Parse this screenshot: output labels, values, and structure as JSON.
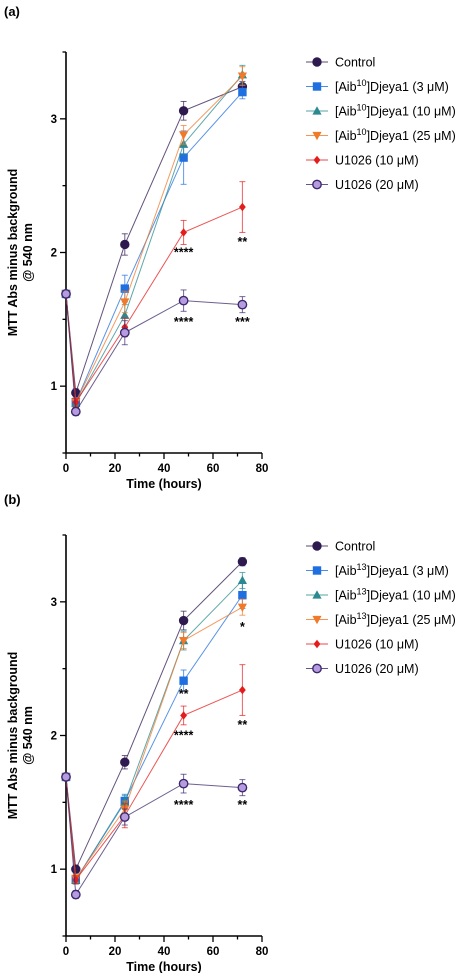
{
  "chart_data": [
    {
      "type": "line",
      "panel_label": "(a)",
      "xlabel": "Time (hours)",
      "ylabel_lines": [
        "MTT Abs minus background",
        "@ 540 nm"
      ],
      "xlim": [
        0,
        80
      ],
      "ylim": [
        0.5,
        3.5
      ],
      "xticks": [
        0,
        20,
        40,
        60,
        80
      ],
      "yticks": [
        1,
        2,
        3
      ],
      "series": [
        {
          "name": "Control",
          "legend_prefix": "",
          "legend_sup": "",
          "legend_suffix": "",
          "color": "#2e1a4f",
          "fill": "#2e1a4f",
          "marker": "circle",
          "x": [
            0,
            4,
            24,
            48,
            72
          ],
          "y": [
            1.69,
            0.95,
            2.06,
            3.06,
            3.24
          ],
          "err": [
            0.02,
            0.03,
            0.08,
            0.07,
            0.04
          ]
        },
        {
          "name": "[Aib10]Djeya1 (3 μM)",
          "legend_prefix": "[Aib",
          "legend_sup": "10",
          "legend_suffix": "]Djeya1 (3 μM)",
          "color": "#1f6fe0",
          "fill": "#1f6fe0",
          "marker": "square",
          "x": [
            0,
            4,
            24,
            48,
            72
          ],
          "y": [
            1.69,
            0.88,
            1.73,
            2.71,
            3.2
          ],
          "err": [
            0.02,
            0.03,
            0.1,
            0.2,
            0.05
          ]
        },
        {
          "name": "[Aib10]Djeya1 (10 μM)",
          "legend_prefix": "[Aib",
          "legend_sup": "10",
          "legend_suffix": "]Djeya1 (10 μM)",
          "color": "#2a8a8f",
          "fill": "#2a8a8f",
          "marker": "triangle-up",
          "x": [
            0,
            4,
            24,
            48,
            72
          ],
          "y": [
            1.69,
            0.87,
            1.53,
            2.81,
            3.33
          ],
          "err": [
            0.02,
            0.03,
            0.08,
            0.08,
            0.07
          ]
        },
        {
          "name": "[Aib10]Djeya1 (25 μM)",
          "legend_prefix": "[Aib",
          "legend_sup": "10",
          "legend_suffix": "]Djeya1 (25 μM)",
          "color": "#f07a2a",
          "fill": "#f07a2a",
          "marker": "triangle-down",
          "x": [
            0,
            4,
            24,
            48,
            72
          ],
          "y": [
            1.69,
            0.88,
            1.63,
            2.88,
            3.32
          ],
          "err": [
            0.02,
            0.03,
            0.08,
            0.07,
            0.07
          ]
        },
        {
          "name": "U1026 (10 μM)",
          "legend_prefix": "",
          "legend_sup": "",
          "legend_suffix": "",
          "color": "#e51c1c",
          "fill": "#e51c1c",
          "marker": "diamond",
          "x": [
            0,
            4,
            24,
            48,
            72
          ],
          "y": [
            1.69,
            0.88,
            1.44,
            2.15,
            2.34
          ],
          "err": [
            0.02,
            0.03,
            0.07,
            0.09,
            0.19
          ]
        },
        {
          "name": "U1026 (20 μM)",
          "legend_prefix": "",
          "legend_sup": "",
          "legend_suffix": "",
          "color": "#3b2a6b",
          "fill": "#b79be0",
          "marker": "circle-open",
          "x": [
            0,
            4,
            24,
            48,
            72
          ],
          "y": [
            1.69,
            0.81,
            1.4,
            1.64,
            1.61
          ],
          "err": [
            0.02,
            0.03,
            0.09,
            0.08,
            0.06
          ]
        }
      ],
      "annotations": [
        {
          "text": "****",
          "x": 48,
          "y": 1.97
        },
        {
          "text": "**",
          "x": 72,
          "y": 2.05
        },
        {
          "text": "****",
          "x": 48,
          "y": 1.45
        },
        {
          "text": "***",
          "x": 72,
          "y": 1.45
        }
      ]
    },
    {
      "type": "line",
      "panel_label": "(b)",
      "xlabel": "Time (hours)",
      "ylabel_lines": [
        "MTT Abs minus background",
        "@ 540 nm"
      ],
      "xlim": [
        0,
        80
      ],
      "ylim": [
        0.5,
        3.5
      ],
      "xticks": [
        0,
        20,
        40,
        60,
        80
      ],
      "yticks": [
        1,
        2,
        3
      ],
      "series": [
        {
          "name": "Control",
          "legend_prefix": "",
          "legend_sup": "",
          "legend_suffix": "",
          "color": "#2e1a4f",
          "fill": "#2e1a4f",
          "marker": "circle",
          "x": [
            0,
            4,
            24,
            48,
            72
          ],
          "y": [
            1.69,
            1.0,
            1.8,
            2.86,
            3.3
          ],
          "err": [
            0.02,
            0.03,
            0.05,
            0.07,
            0.03
          ]
        },
        {
          "name": "[Aib13]Djeya1 (3 μM)",
          "legend_prefix": "[Aib",
          "legend_sup": "13",
          "legend_suffix": "]Djeya1 (3 μM)",
          "color": "#1f6fe0",
          "fill": "#1f6fe0",
          "marker": "square",
          "x": [
            0,
            4,
            24,
            48,
            72
          ],
          "y": [
            1.69,
            0.92,
            1.51,
            2.41,
            3.05
          ],
          "err": [
            0.02,
            0.03,
            0.05,
            0.08,
            0.1
          ]
        },
        {
          "name": "[Aib13]Djeya1 (10 μM)",
          "legend_prefix": "[Aib",
          "legend_sup": "13",
          "legend_suffix": "]Djeya1 (10 μM)",
          "color": "#2a8a8f",
          "fill": "#2a8a8f",
          "marker": "triangle-up",
          "x": [
            0,
            4,
            24,
            48,
            72
          ],
          "y": [
            1.69,
            0.92,
            1.5,
            2.71,
            3.16
          ],
          "err": [
            0.02,
            0.03,
            0.05,
            0.07,
            0.06
          ]
        },
        {
          "name": "[Aib13]Djeya1 (25 μM)",
          "legend_prefix": "[Aib",
          "legend_sup": "13",
          "legend_suffix": "]Djeya1 (25 μM)",
          "color": "#f07a2a",
          "fill": "#f07a2a",
          "marker": "triangle-down",
          "x": [
            0,
            4,
            24,
            48,
            72
          ],
          "y": [
            1.69,
            0.93,
            1.45,
            2.71,
            2.96
          ],
          "err": [
            0.02,
            0.03,
            0.06,
            0.06,
            0.06
          ]
        },
        {
          "name": "U1026 (10 μM)",
          "legend_prefix": "",
          "legend_sup": "",
          "legend_suffix": "",
          "color": "#e51c1c",
          "fill": "#e51c1c",
          "marker": "diamond",
          "x": [
            0,
            4,
            24,
            48,
            72
          ],
          "y": [
            1.69,
            0.92,
            1.4,
            2.15,
            2.34
          ],
          "err": [
            0.02,
            0.03,
            0.09,
            0.07,
            0.19
          ]
        },
        {
          "name": "U1026 (20 μM)",
          "legend_prefix": "",
          "legend_sup": "",
          "legend_suffix": "",
          "color": "#3b2a6b",
          "fill": "#b79be0",
          "marker": "circle-open",
          "x": [
            0,
            4,
            24,
            48,
            72
          ],
          "y": [
            1.69,
            0.81,
            1.39,
            1.64,
            1.61
          ],
          "err": [
            0.02,
            0.03,
            0.06,
            0.07,
            0.06
          ]
        }
      ],
      "annotations": [
        {
          "text": "*",
          "x": 72,
          "y": 2.78
        },
        {
          "text": "**",
          "x": 48,
          "y": 2.28
        },
        {
          "text": "****",
          "x": 48,
          "y": 1.97
        },
        {
          "text": "**",
          "x": 72,
          "y": 2.05
        },
        {
          "text": "****",
          "x": 48,
          "y": 1.45
        },
        {
          "text": "**",
          "x": 72,
          "y": 1.45
        }
      ]
    }
  ]
}
